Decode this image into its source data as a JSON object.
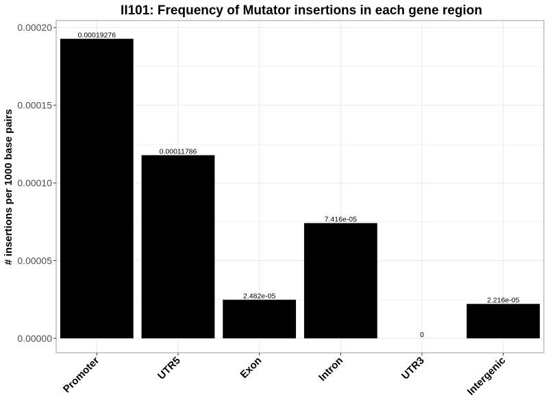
{
  "chart_data": {
    "type": "bar",
    "title": "II101: Frequency of Mutator insertions in each gene region",
    "xlabel": "",
    "ylabel": "# insertions per 1000 base pairs",
    "categories": [
      "Promoter",
      "UTR5",
      "Exon",
      "Intron",
      "UTR3",
      "Intergenic"
    ],
    "values": [
      0.00019276,
      0.00011786,
      2.482e-05,
      7.416e-05,
      0,
      2.216e-05
    ],
    "data_labels": [
      "0.00019276",
      "0.00011786",
      "2.482e-05",
      "7.416e-05",
      "0",
      "2.216e-05"
    ],
    "yticks": [
      0,
      5e-05,
      0.0001,
      0.00015,
      0.0002
    ],
    "ytick_labels": [
      "0.00000",
      "0.00005",
      "0.00010",
      "0.00015",
      "0.00020"
    ],
    "ylim": [
      -9.3e-06,
      0.0002045
    ],
    "grid": true,
    "legend": "none",
    "bar_color": "#000000",
    "grid_color": "#ebebeb",
    "panel_border_color": "#999999"
  }
}
